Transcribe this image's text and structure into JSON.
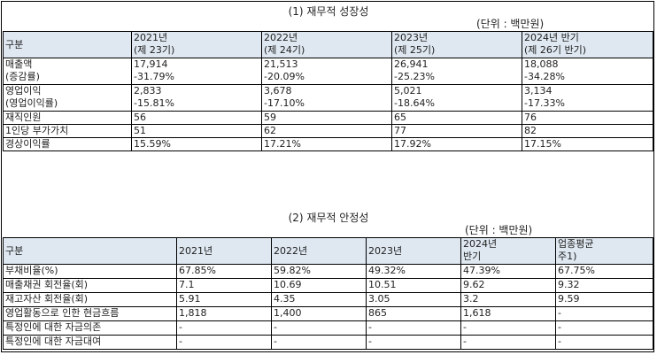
{
  "section1": {
    "title": "(1) 재무적 성장성",
    "unit": "(단위 : 백만원)",
    "header": {
      "label": "구분",
      "cols": [
        {
          "line1": "2021년",
          "line2": "(제 23기)"
        },
        {
          "line1": "2022년",
          "line2": "(제 24기)"
        },
        {
          "line1": "2023년",
          "line2": "(제 25기)"
        },
        {
          "line1": "2024년 반기",
          "line2": "(제 26기 반기)"
        }
      ]
    },
    "rows": [
      {
        "label1": "매출액",
        "label2": "(증감률)",
        "cells": [
          {
            "v1": "17,914",
            "v2": "-31.79%"
          },
          {
            "v1": "21,513",
            "v2": "-20.09%"
          },
          {
            "v1": "26,941",
            "v2": "-25.23%"
          },
          {
            "v1": "18,088",
            "v2": "-34.28%"
          }
        ]
      },
      {
        "label1": "영업이익",
        "label2": "(영업이익률)",
        "cells": [
          {
            "v1": "2,833",
            "v2": "-15.81%"
          },
          {
            "v1": "3,678",
            "v2": "-17.10%"
          },
          {
            "v1": "5,021",
            "v2": "-18.64%"
          },
          {
            "v1": "3,134",
            "v2": "-17.33%"
          }
        ]
      },
      {
        "label1": "재직인원",
        "cells": [
          {
            "v1": "56"
          },
          {
            "v1": "59"
          },
          {
            "v1": "65"
          },
          {
            "v1": "76"
          }
        ]
      },
      {
        "label1": "1인당 부가가치",
        "cells": [
          {
            "v1": "51"
          },
          {
            "v1": "62"
          },
          {
            "v1": "77"
          },
          {
            "v1": "82"
          }
        ]
      },
      {
        "label1": "경상이익률",
        "cells": [
          {
            "v1": "15.59%"
          },
          {
            "v1": "17.21%"
          },
          {
            "v1": "17.92%"
          },
          {
            "v1": "17.15%"
          }
        ]
      }
    ]
  },
  "section2": {
    "title": "(2) 재무적 안정성",
    "unit": "(단위 : 백만원)",
    "header": {
      "label": "구분",
      "cols": [
        {
          "line1": "2021년"
        },
        {
          "line1": "2022년"
        },
        {
          "line1": "2023년"
        },
        {
          "line1": "2024년",
          "line2": "반기"
        },
        {
          "line1": "업종평균",
          "line2": "주1)"
        }
      ]
    },
    "rows": [
      {
        "label": "부채비율(%)",
        "cells": [
          "67.85%",
          "59.82%",
          "49.32%",
          "47.39%",
          "67.75%"
        ]
      },
      {
        "label": "매출채권 회전율(회)",
        "cells": [
          "7.1",
          "10.69",
          "10.51",
          "9.62",
          "9.32"
        ]
      },
      {
        "label": "재고자산 회전율(회)",
        "cells": [
          "5.91",
          "4.35",
          "3.05",
          "3.2",
          "9.59"
        ]
      },
      {
        "label": "영업활동으로 인한 현금흐름",
        "cells": [
          "1,818",
          "1,400",
          "865",
          "1,618",
          "-"
        ]
      },
      {
        "label": "특정인에 대한 자금의존",
        "cells": [
          "-",
          "-",
          "-",
          "-",
          "-"
        ]
      },
      {
        "label": "특정인에 대한 자금대여",
        "cells": [
          "-",
          "-",
          "-",
          "-",
          "-"
        ]
      }
    ]
  }
}
